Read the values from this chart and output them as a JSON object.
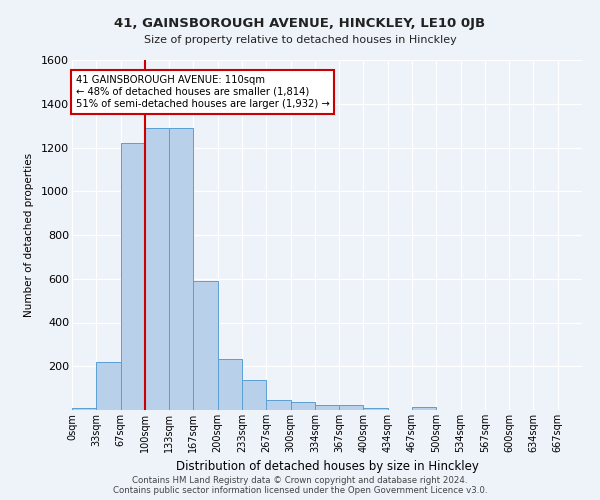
{
  "title": "41, GAINSBOROUGH AVENUE, HINCKLEY, LE10 0JB",
  "subtitle": "Size of property relative to detached houses in Hinckley",
  "xlabel": "Distribution of detached houses by size in Hinckley",
  "ylabel": "Number of detached properties",
  "footnote1": "Contains HM Land Registry data © Crown copyright and database right 2024.",
  "footnote2": "Contains public sector information licensed under the Open Government Licence v3.0.",
  "bin_labels": [
    "0sqm",
    "33sqm",
    "67sqm",
    "100sqm",
    "133sqm",
    "167sqm",
    "200sqm",
    "233sqm",
    "267sqm",
    "300sqm",
    "334sqm",
    "367sqm",
    "400sqm",
    "434sqm",
    "467sqm",
    "500sqm",
    "534sqm",
    "567sqm",
    "600sqm",
    "634sqm",
    "667sqm"
  ],
  "bar_values": [
    10,
    220,
    1220,
    1290,
    1290,
    590,
    235,
    135,
    48,
    35,
    22,
    22,
    10,
    0,
    12,
    0,
    0,
    0,
    0,
    0,
    0
  ],
  "bar_color": "#b8d0ea",
  "bar_edge_color": "#5a9fd4",
  "vline_x": 3,
  "vline_color": "#cc0000",
  "ylim": [
    0,
    1600
  ],
  "yticks": [
    0,
    200,
    400,
    600,
    800,
    1000,
    1200,
    1400,
    1600
  ],
  "annotation_text": "41 GAINSBOROUGH AVENUE: 110sqm\n← 48% of detached houses are smaller (1,814)\n51% of semi-detached houses are larger (1,932) →",
  "annotation_box_color": "#ffffff",
  "annotation_box_edge_color": "#cc0000",
  "background_color": "#eef2f9"
}
